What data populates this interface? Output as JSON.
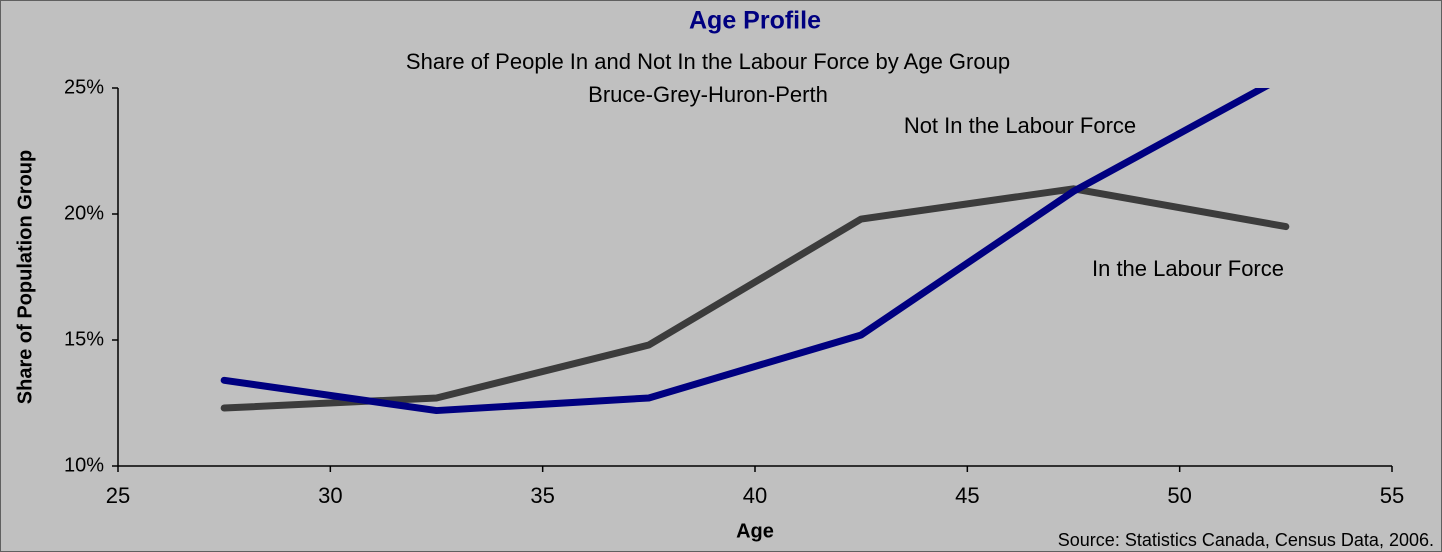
{
  "chart_data": {
    "type": "line",
    "title": "Age Profile",
    "subtitle": [
      "Share of People In and Not In the Labour Force by Age Group",
      "Bruce-Grey-Huron-Perth"
    ],
    "x_label": "Age",
    "y_label": "Share of Population Group",
    "source": "Source: Statistics Canada, Census Data, 2006.",
    "x": [
      27.5,
      32.5,
      37.5,
      42.5,
      47.5,
      52.5
    ],
    "series": [
      {
        "name": "In the Labour Force",
        "color": "#3c3c3c",
        "values": [
          12.3,
          12.7,
          14.8,
          19.8,
          21.0,
          19.5
        ]
      },
      {
        "name": "Not In the Labour Force",
        "color": "#000080",
        "values": [
          13.4,
          12.2,
          12.7,
          15.2,
          20.9,
          25.5
        ]
      }
    ],
    "xlim": [
      25,
      55
    ],
    "xticks": [
      25,
      30,
      35,
      40,
      45,
      50,
      55
    ],
    "ylim": [
      10,
      25
    ],
    "yticks": [
      {
        "value": 10,
        "label": "10%"
      },
      {
        "value": 15,
        "label": "15%"
      },
      {
        "value": 20,
        "label": "20%"
      },
      {
        "value": 25,
        "label": "25%"
      }
    ],
    "grid": false
  }
}
